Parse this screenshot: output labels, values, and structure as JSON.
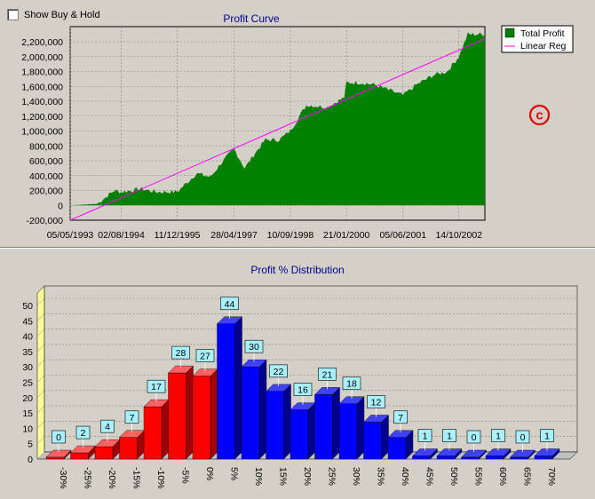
{
  "controls": {
    "show_buy_hold_label": "Show Buy & Hold",
    "show_buy_hold_checked": false
  },
  "watermark": {
    "glyph": "c",
    "color": "#e00000"
  },
  "colors": {
    "profit_fill": "#008000",
    "regression": "#ff00ff",
    "bar_red": "#ff0000",
    "bar_blue": "#0000ff",
    "label_bg": "#a8f0ff",
    "back_wall": "#ffff99"
  },
  "chart_data": [
    {
      "type": "area",
      "title": "Profit Curve",
      "series": [
        {
          "name": "Total Profit",
          "x": [
            "05/05/1993",
            "01/1994",
            "06/1994",
            "02/08/1994",
            "02/1995",
            "06/1995",
            "11/12/1995",
            "06/1996",
            "10/1996",
            "01/1997",
            "28/04/1997",
            "08/1997",
            "11/1997",
            "02/1998",
            "06/1998",
            "10/09/1998",
            "02/1999",
            "08/1999",
            "01/2000",
            "21/01/2000",
            "06/2000",
            "10/2000",
            "02/2001",
            "05/06/2001",
            "10/2001",
            "03/2002",
            "07/2002",
            "14/10/2002",
            "01/2003",
            "06/2003"
          ],
          "values": [
            0,
            20000,
            200000,
            180000,
            220000,
            180000,
            180000,
            430000,
            380000,
            560000,
            760000,
            500000,
            700000,
            880000,
            880000,
            1000000,
            1350000,
            1320000,
            1450000,
            1650000,
            1650000,
            1620000,
            1550000,
            1480000,
            1620000,
            1750000,
            1800000,
            2000000,
            2300000,
            2300000
          ]
        },
        {
          "name": "Linear Reg",
          "x": [
            "05/05/1993",
            "06/2003"
          ],
          "values": [
            -200000,
            2240000
          ]
        }
      ],
      "x_tick_labels": [
        "05/05/1993",
        "02/08/1994",
        "11/12/1995",
        "28/04/1997",
        "10/09/1998",
        "21/01/2000",
        "05/06/2001",
        "14/10/2002"
      ],
      "y_tick_labels": [
        "-200,000",
        "0",
        "200,000",
        "400,000",
        "600,000",
        "800,000",
        "1,000,000",
        "1,200,000",
        "1,400,000",
        "1,600,000",
        "1,800,000",
        "2,000,000",
        "2,200,000"
      ],
      "ylim": [
        -200000,
        2300000
      ],
      "grid": true,
      "legend": "top-right"
    },
    {
      "type": "bar",
      "title": "Profit % Distribution",
      "categories": [
        "-30%",
        "-25%",
        "-20%",
        "-15%",
        "-10%",
        "-5%",
        "0%",
        "5%",
        "10%",
        "15%",
        "20%",
        "25%",
        "30%",
        "35%",
        "40%",
        "45%",
        "50%",
        "55%",
        "60%",
        "65%",
        "70%"
      ],
      "values": [
        0,
        2,
        4,
        7,
        17,
        28,
        27,
        44,
        30,
        22,
        16,
        21,
        18,
        12,
        7,
        1,
        1,
        0,
        1,
        0,
        1
      ],
      "value_labels": [
        "0",
        "2",
        "4",
        "7",
        "17",
        "28",
        "27",
        "44",
        "30",
        "22",
        "16",
        "21",
        "18",
        "12",
        "7",
        "1",
        "1",
        "0",
        "1",
        "0",
        "1"
      ],
      "y_tick_labels": [
        "0",
        "5",
        "10",
        "15",
        "20",
        "25",
        "30",
        "35",
        "40",
        "45",
        "50"
      ],
      "ylim": [
        0,
        50
      ],
      "grid": true
    }
  ]
}
